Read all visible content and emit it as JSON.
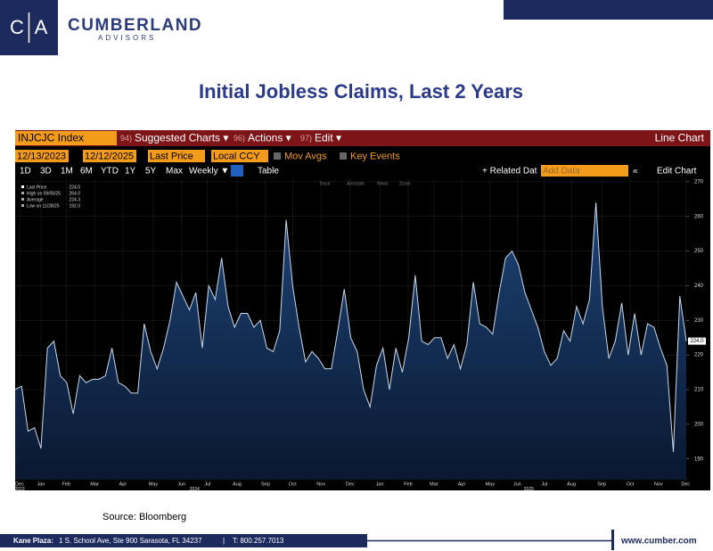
{
  "header": {
    "logo_letters": [
      "C",
      "A"
    ],
    "brand": "CUMBERLAND",
    "sub": "ADVISORS"
  },
  "title": "Initial Jobless Claims, Last 2 Years",
  "terminal": {
    "ticker": "INJCJC Index",
    "menu": [
      {
        "num": "94)",
        "label": "Suggested Charts ▾"
      },
      {
        "num": "96)",
        "label": "Actions ▾"
      },
      {
        "num": "97)",
        "label": "Edit ▾"
      }
    ],
    "chart_type": "Line Chart",
    "start": "12/13/2023",
    "end": "12/12/2025",
    "field": "Last Price",
    "currency": "Local CCY",
    "options": [
      "Mov Avgs",
      "Key Events"
    ],
    "ranges": [
      "1D",
      "3D",
      "1M",
      "6M",
      "YTD",
      "1Y",
      "5Y",
      "Max"
    ],
    "period": "Weekly ▼",
    "table": "Table",
    "related": "+ Related Dat",
    "add": "Add Data",
    "edit": "Edit Chart",
    "tools": [
      "Track",
      "Annotate",
      "News",
      "Zoom"
    ]
  },
  "chart_data": {
    "type": "line",
    "values": [
      210,
      211,
      198,
      199,
      193,
      222,
      224,
      214,
      212,
      203,
      214,
      212,
      213,
      213,
      214,
      222,
      212,
      211,
      209,
      209,
      229,
      221,
      216,
      222,
      230,
      241,
      237,
      233,
      238,
      222,
      240,
      236,
      248,
      234,
      228,
      232,
      232,
      228,
      230,
      222,
      221,
      227,
      259,
      240,
      228,
      218,
      221,
      219,
      216,
      216,
      227,
      239,
      225,
      221,
      210,
      205,
      217,
      222,
      210,
      222,
      215,
      225,
      243,
      224,
      223,
      225,
      225,
      219,
      223,
      216,
      223,
      241,
      229,
      228,
      226,
      238,
      248,
      250,
      246,
      238,
      233,
      228,
      221,
      217,
      219,
      227,
      224,
      234,
      229,
      236,
      264,
      234,
      219,
      224,
      235,
      220,
      232,
      220,
      229,
      228,
      222,
      217,
      192,
      237,
      224
    ],
    "color": "#c9d9ee",
    "xlim": [
      0,
      104
    ],
    "xticks": [
      {
        "value": 0.7,
        "label": "Dec"
      },
      {
        "value": 4.0,
        "label": "Jan"
      },
      {
        "value": 7.9,
        "label": "Feb"
      },
      {
        "value": 12.3,
        "label": "Mar"
      },
      {
        "value": 16.7,
        "label": "Apr"
      },
      {
        "value": 21.4,
        "label": "May"
      },
      {
        "value": 25.8,
        "label": "Jun"
      },
      {
        "value": 29.8,
        "label": "Jul"
      },
      {
        "value": 34.4,
        "label": "Aug"
      },
      {
        "value": 38.8,
        "label": "Sep"
      },
      {
        "value": 43.0,
        "label": "Oct"
      },
      {
        "value": 47.4,
        "label": "Nov"
      },
      {
        "value": 51.9,
        "label": "Dec"
      },
      {
        "value": 56.5,
        "label": "Jan"
      },
      {
        "value": 60.9,
        "label": "Feb"
      },
      {
        "value": 64.9,
        "label": "Mar"
      },
      {
        "value": 69.2,
        "label": "Apr"
      },
      {
        "value": 73.6,
        "label": "May"
      },
      {
        "value": 77.8,
        "label": "Jun"
      },
      {
        "value": 82.0,
        "label": "Jul"
      },
      {
        "value": 86.2,
        "label": "Aug"
      },
      {
        "value": 90.9,
        "label": "Sep"
      },
      {
        "value": 95.3,
        "label": "Oct"
      },
      {
        "value": 99.7,
        "label": "Nov"
      },
      {
        "value": 103.9,
        "label": "Dec"
      }
    ],
    "year_ticks": [
      {
        "value": 0.7,
        "label": "2023"
      },
      {
        "value": 27.8,
        "label": "2024"
      },
      {
        "value": 79.6,
        "label": "2025"
      }
    ],
    "ylim": [
      184,
      271
    ],
    "yticks": [
      190,
      200,
      210,
      220,
      230,
      240,
      250,
      260,
      270
    ],
    "grid": true,
    "legend": [
      {
        "label": "Last Price",
        "value": "224.0"
      },
      {
        "label": "High on 09/05/25",
        "value": "264.0"
      },
      {
        "label": "Average",
        "value": "224.3"
      },
      {
        "label": "Low on 11/28/25",
        "value": "192.0"
      }
    ],
    "last_label": "224.0"
  },
  "source": "Source: Bloomberg",
  "footer": {
    "label": "Kane Plaza:",
    "address": "1 S. School Ave, Ste 900  Sarasota, FL 34237",
    "separator": "|",
    "phone": "T: 800.257.7013",
    "url": "www.cumber.com"
  }
}
